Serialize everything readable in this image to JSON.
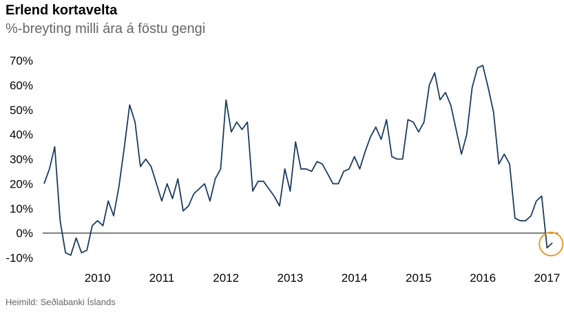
{
  "title": "Erlend kortavelta",
  "subtitle": "%-breyting milli ára á föstu gengi",
  "source": "Heimild: Seðlabanki Íslands",
  "colors": {
    "line": "#1a3a5c",
    "highlight": "#e39a2b",
    "zero": "#000000"
  },
  "chart_data": {
    "type": "line",
    "title": "Erlend kortavelta",
    "subtitle": "%-breyting milli ára á föstu gengi",
    "xlabel": "",
    "ylabel": "",
    "ylim": [
      -10,
      70
    ],
    "yticks": [
      70,
      60,
      50,
      40,
      30,
      20,
      10,
      0,
      -10
    ],
    "ytick_labels": [
      "70%",
      "60%",
      "50%",
      "40%",
      "30%",
      "20%",
      "10%",
      "0%",
      "-10%"
    ],
    "xtick_labels": [
      "2010",
      "2011",
      "2012",
      "2013",
      "2014",
      "2015",
      "2016",
      "2017"
    ],
    "grid": false,
    "x_start": "2009-09",
    "frequency": "monthly",
    "annotation": "circle around latest observations",
    "series": [
      {
        "values": [
          20,
          26,
          35,
          5,
          -8,
          -9,
          -2,
          -8,
          -7,
          3,
          5,
          3,
          13,
          7,
          19,
          35,
          52,
          45,
          27,
          30,
          27,
          20,
          13,
          20,
          14,
          22,
          9,
          11,
          16,
          18,
          20,
          13,
          22,
          26,
          54,
          41,
          45,
          42,
          45,
          17,
          21,
          21,
          18,
          15,
          11,
          26,
          17,
          37,
          26,
          26,
          25,
          29,
          28,
          24,
          20,
          20,
          25,
          26,
          31,
          26,
          33,
          39,
          43,
          38,
          46,
          31,
          30,
          30,
          46,
          45,
          41,
          45,
          60,
          65,
          54,
          57,
          52,
          42,
          32,
          40,
          59,
          67,
          68,
          59,
          49,
          28,
          32,
          28,
          6,
          5,
          5,
          7,
          13,
          15,
          -6,
          -4
        ]
      }
    ]
  }
}
